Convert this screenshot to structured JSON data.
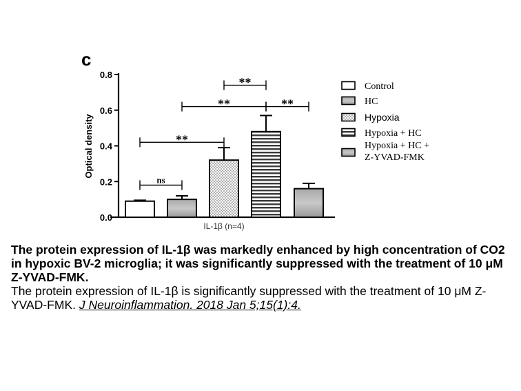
{
  "figure": {
    "panel_label": "c",
    "caption_title": "The protein expression of IL-1β was markedly enhanced by high concentration of CO2 in hypoxic BV-2 microglia; it was significantly suppressed with the treatment of 10 μM Z-YVAD-FMK.",
    "caption_text": "The protein expression of IL-1β is significantly suppressed with the treatment of 10 μM Z-YVAD-FMK. ",
    "caption_citation": "J Neuroinflammation. 2018 Jan 5;15(1):4."
  },
  "chart_data": {
    "type": "bar",
    "title": "",
    "xlabel": "IL-1β (n=4)",
    "ylabel": "Optical density",
    "ylim": [
      0,
      0.8
    ],
    "yticks": [
      "0.0",
      "0.2",
      "0.4",
      "0.6",
      "0.8"
    ],
    "grid": false,
    "legend_position": "right",
    "series": [
      {
        "name": "Control",
        "value": 0.09,
        "error": 0.005,
        "pattern": "white"
      },
      {
        "name": "HC",
        "value": 0.1,
        "error": 0.02,
        "pattern": "gray-gradient"
      },
      {
        "name": "Hypoxia",
        "value": 0.32,
        "error": 0.07,
        "pattern": "dots"
      },
      {
        "name": "Hypoxia + HC",
        "value": 0.48,
        "error": 0.09,
        "pattern": "hstripes"
      },
      {
        "name": "Hypoxia + HC + Z-YVAD-FMK",
        "value": 0.16,
        "error": 0.03,
        "pattern": "gray-gradient"
      }
    ],
    "legend_labels": [
      "Control",
      "HC",
      "Hypoxia",
      "Hypoxia + HC",
      "Hypoxia + HC +",
      "Z-YVAD-FMK"
    ],
    "annotations": [
      {
        "label": "ns",
        "from": 0,
        "to": 1,
        "y": 0.18
      },
      {
        "label": "**",
        "from": 0,
        "to": 2,
        "y": 0.42
      },
      {
        "label": "**",
        "from": 1,
        "to": 3,
        "y": 0.62
      },
      {
        "label": "**",
        "from": 2,
        "to": 3,
        "y": 0.74
      },
      {
        "label": "**",
        "from": 3,
        "to": 4,
        "y": 0.62
      }
    ]
  }
}
